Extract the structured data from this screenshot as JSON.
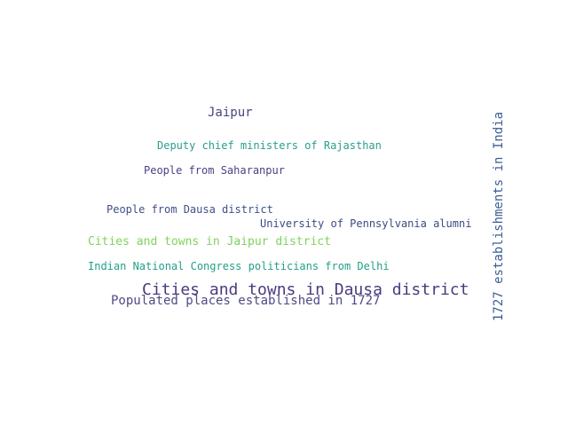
{
  "word_cloud": {
    "words": [
      {
        "text": "Jaipur",
        "color": "#46467f"
      },
      {
        "text": "Deputy chief ministers of Rajasthan",
        "color": "#2a9d8f"
      },
      {
        "text": "People from Saharanpur",
        "color": "#4a3f86"
      },
      {
        "text": "People from Dausa district",
        "color": "#3f4f8a"
      },
      {
        "text": "University of Pennsylvania alumni",
        "color": "#3d4a82"
      },
      {
        "text": "Cities and towns in Jaipur district",
        "color": "#7ed35a"
      },
      {
        "text": "Indian National Congress politicians from Delhi",
        "color": "#23a08a"
      },
      {
        "text": "Cities and towns in Dausa district",
        "color": "#4b3a7e"
      },
      {
        "text": "Populated places established in 1727",
        "color": "#4f4a86"
      },
      {
        "text": "1727 establishments in India",
        "color": "#3b5d94"
      }
    ]
  }
}
